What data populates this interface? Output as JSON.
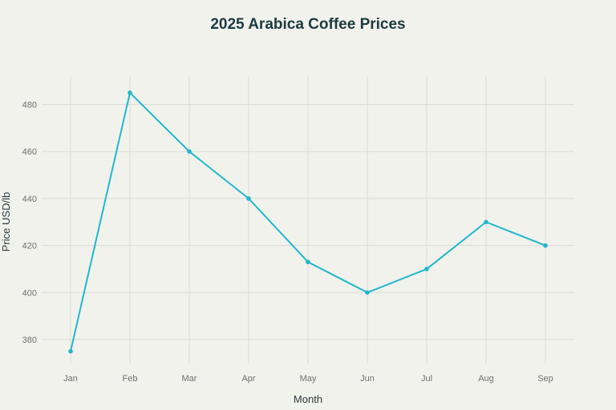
{
  "chart_data": {
    "type": "line",
    "title": "2025 Arabica Coffee Prices",
    "xlabel": "Month",
    "ylabel": "Price USD/lb",
    "categories": [
      "Jan",
      "Feb",
      "Mar",
      "Apr",
      "May",
      "Jun",
      "Jul",
      "Aug",
      "Sep"
    ],
    "series": [
      {
        "name": "Price USD/lb",
        "values": [
          375,
          485,
          460,
          440,
          413,
          400,
          410,
          430,
          420
        ],
        "color": "#1fb8cd"
      }
    ],
    "yticks": [
      380,
      400,
      420,
      440,
      460,
      480
    ],
    "ylim": [
      370,
      492
    ],
    "grid": true,
    "legend": "none"
  }
}
